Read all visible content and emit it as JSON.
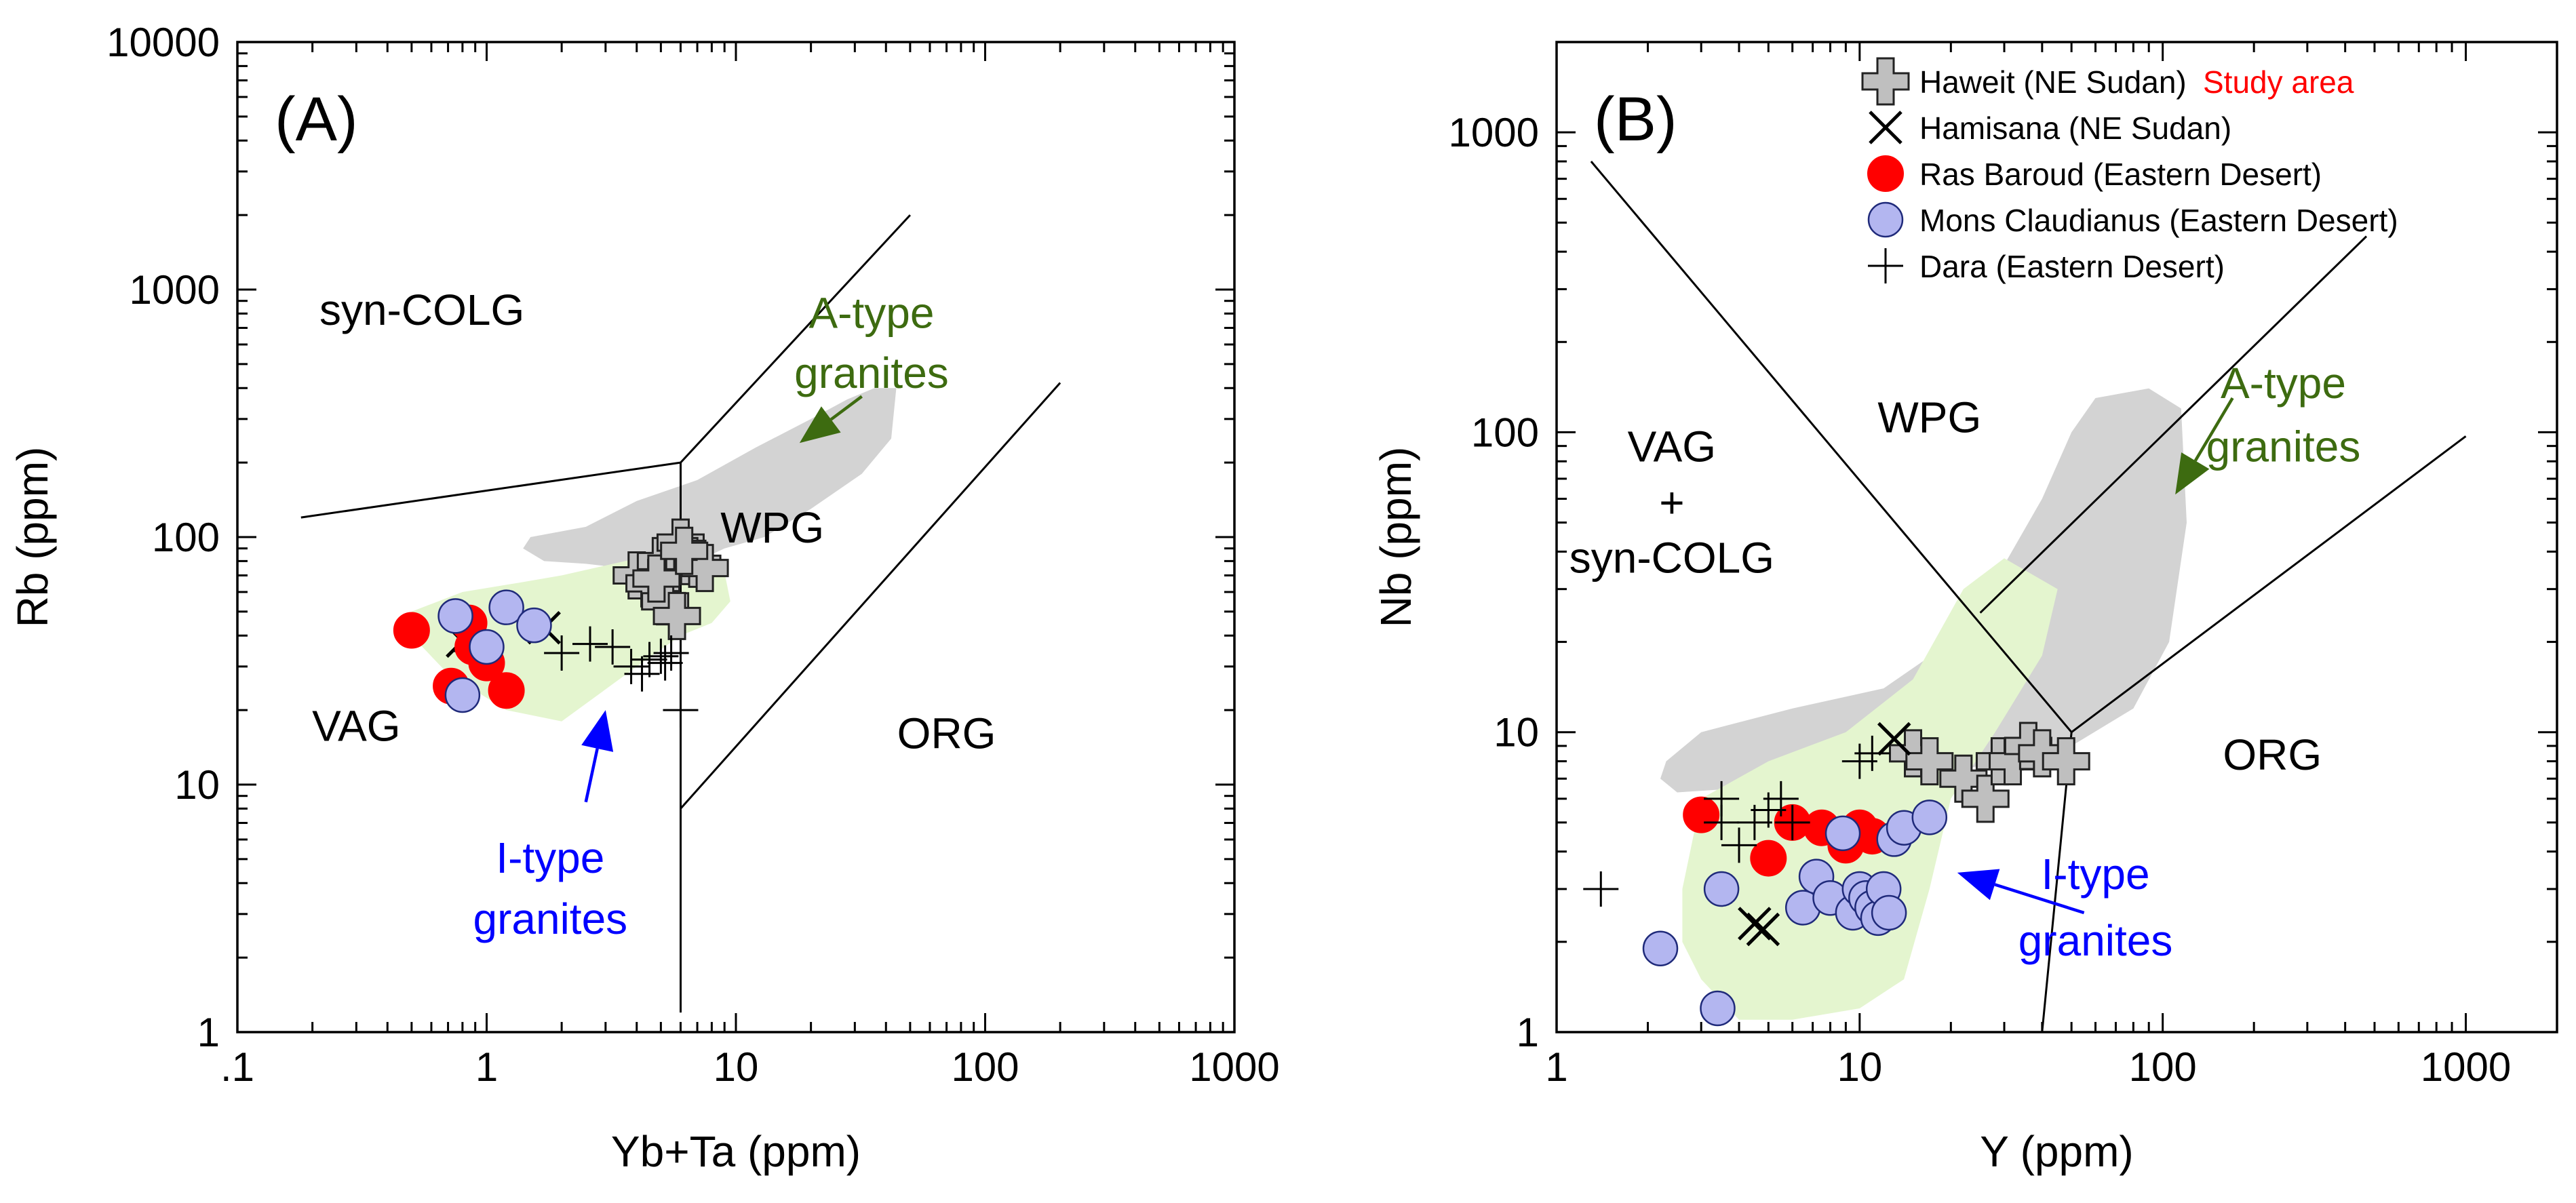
{
  "chart_data": [
    {
      "type": "scatter",
      "panel_label": "(A)",
      "xlabel": "Yb+Ta (ppm)",
      "ylabel": "Rb (ppm)",
      "xscale": "log",
      "yscale": "log",
      "xlim": [
        0.1,
        1000
      ],
      "ylim": [
        1,
        10000
      ],
      "x_ticks": [
        {
          "v": 0.1,
          "label": ".1"
        },
        {
          "v": 1,
          "label": "1"
        },
        {
          "v": 10,
          "label": "10"
        },
        {
          "v": 100,
          "label": "100"
        },
        {
          "v": 1000,
          "label": "1000"
        }
      ],
      "y_ticks": [
        {
          "v": 1,
          "label": "1"
        },
        {
          "v": 10,
          "label": "10"
        },
        {
          "v": 100,
          "label": "100"
        },
        {
          "v": 1000,
          "label": "1000"
        },
        {
          "v": 10000,
          "label": "10000"
        }
      ],
      "field_labels": [
        {
          "text": "syn-COLG",
          "x": 0.55,
          "y": 720,
          "color": "#000000"
        },
        {
          "text": "WPG",
          "x": 14,
          "y": 95,
          "color": "#000000"
        },
        {
          "text": "VAG",
          "x": 0.3,
          "y": 15,
          "color": "#000000"
        },
        {
          "text": "ORG",
          "x": 70,
          "y": 14,
          "color": "#000000"
        },
        {
          "text": "A-type",
          "x": 35,
          "y": 700,
          "color": "#3d6b10"
        },
        {
          "text": "granites",
          "x": 35,
          "y": 400,
          "color": "#3d6b10"
        },
        {
          "text": "I-type",
          "x": 1.8,
          "y": 4.4,
          "color": "#0000ff"
        },
        {
          "text": "granites",
          "x": 1.8,
          "y": 2.5,
          "color": "#0000ff"
        }
      ],
      "boundaries": [
        [
          [
            0.18,
            120
          ],
          [
            6,
            200
          ],
          [
            6,
            1.2
          ]
        ],
        [
          [
            6,
            200
          ],
          [
            50,
            2000
          ]
        ],
        [
          [
            6,
            8
          ],
          [
            200,
            420
          ]
        ]
      ],
      "fields": [
        {
          "name": "A-type granites field",
          "color": "#d3d3d3",
          "points": [
            [
              2.5,
              110
            ],
            [
              4,
              140
            ],
            [
              7,
              170
            ],
            [
              12,
              230
            ],
            [
              20,
              300
            ],
            [
              28,
              360
            ],
            [
              36,
              400
            ],
            [
              44,
              400
            ],
            [
              42,
              250
            ],
            [
              32,
              180
            ],
            [
              20,
              130
            ],
            [
              13,
              100
            ],
            [
              9,
              90
            ],
            [
              7,
              80
            ],
            [
              5,
              75
            ],
            [
              3.5,
              75
            ],
            [
              2.5,
              78
            ],
            [
              1.7,
              80
            ],
            [
              1.4,
              90
            ],
            [
              1.5,
              100
            ]
          ]
        },
        {
          "name": "I-type granites field",
          "color": "#e4f5cf",
          "points": [
            [
              0.5,
              50
            ],
            [
              0.8,
              60
            ],
            [
              1.3,
              65
            ],
            [
              2,
              70
            ],
            [
              4,
              82
            ],
            [
              7,
              85
            ],
            [
              9,
              72
            ],
            [
              9.5,
              55
            ],
            [
              8,
              45
            ],
            [
              6,
              40
            ],
            [
              4,
              30
            ],
            [
              2,
              18
            ],
            [
              1.2,
              20
            ],
            [
              0.7,
              28
            ],
            [
              0.5,
              40
            ]
          ]
        }
      ],
      "arrows": [
        {
          "from": [
            32,
            370
          ],
          "to": [
            18,
            240
          ],
          "color": "#3d6b10"
        },
        {
          "from": [
            2.5,
            8.5
          ],
          "to": [
            3,
            20
          ],
          "color": "#0000ff"
        }
      ],
      "series": [
        {
          "name": "Haweit (NE Sudan)",
          "marker": "gray-cross",
          "points": [
            [
              4,
              70
            ],
            [
              4.5,
              65
            ],
            [
              5,
              80
            ],
            [
              5.5,
              75
            ],
            [
              6,
              95
            ],
            [
              6.5,
              80
            ],
            [
              7,
              78
            ],
            [
              7.5,
              75
            ],
            [
              5.2,
              55
            ],
            [
              5.8,
              48
            ],
            [
              4.8,
              68
            ],
            [
              6.2,
              88
            ]
          ]
        },
        {
          "name": "Hamisana (NE Sudan)",
          "marker": "x",
          "points": [
            [
              0.8,
              38
            ],
            [
              0.85,
              40
            ],
            [
              1.7,
              43
            ]
          ]
        },
        {
          "name": "Ras Baroud (Eastern Desert)",
          "marker": "red-circle",
          "points": [
            [
              0.5,
              42
            ],
            [
              0.72,
              25
            ],
            [
              0.88,
              36
            ],
            [
              1,
              31
            ],
            [
              1.2,
              24
            ],
            [
              0.85,
              45
            ]
          ]
        },
        {
          "name": "Mons Claudianus (Eastern Desert)",
          "marker": "blue-circle",
          "points": [
            [
              0.75,
              48
            ],
            [
              1.2,
              52
            ],
            [
              1.55,
              44
            ],
            [
              1,
              36
            ],
            [
              0.8,
              23
            ]
          ]
        },
        {
          "name": "Dara (Eastern Desert)",
          "marker": "plus",
          "points": [
            [
              2,
              34
            ],
            [
              2.6,
              37
            ],
            [
              3.2,
              36
            ],
            [
              3.8,
              30
            ],
            [
              4.5,
              32
            ],
            [
              5,
              33
            ],
            [
              5.5,
              34
            ],
            [
              6,
              20
            ],
            [
              4.2,
              28
            ],
            [
              5.2,
              31
            ]
          ]
        }
      ]
    },
    {
      "type": "scatter",
      "panel_label": "(B)",
      "xlabel": "Y (ppm)",
      "ylabel": "Nb (ppm)",
      "xscale": "log",
      "yscale": "log",
      "xlim": [
        1,
        2000
      ],
      "ylim": [
        1,
        2000
      ],
      "x_ticks": [
        {
          "v": 1,
          "label": "1"
        },
        {
          "v": 10,
          "label": "10"
        },
        {
          "v": 100,
          "label": "100"
        },
        {
          "v": 1000,
          "label": "1000"
        }
      ],
      "y_ticks": [
        {
          "v": 1,
          "label": "1"
        },
        {
          "v": 10,
          "label": "10"
        },
        {
          "v": 100,
          "label": "100"
        },
        {
          "v": 1000,
          "label": "1000"
        }
      ],
      "field_labels": [
        {
          "text": "VAG",
          "x": 2.4,
          "y": 80,
          "color": "#000000"
        },
        {
          "text": "+",
          "x": 2.4,
          "y": 52,
          "color": "#000000"
        },
        {
          "text": "syn-COLG",
          "x": 2.4,
          "y": 34,
          "color": "#000000"
        },
        {
          "text": "WPG",
          "x": 17,
          "y": 100,
          "color": "#000000"
        },
        {
          "text": "ORG",
          "x": 230,
          "y": 7.5,
          "color": "#000000"
        },
        {
          "text": "A-type",
          "x": 250,
          "y": 130,
          "color": "#3d6b10"
        },
        {
          "text": "granites",
          "x": 250,
          "y": 80,
          "color": "#3d6b10"
        },
        {
          "text": "I-type",
          "x": 60,
          "y": 3,
          "color": "#0000ff"
        },
        {
          "text": "granites",
          "x": 60,
          "y": 1.8,
          "color": "#0000ff"
        }
      ],
      "boundaries": [
        [
          [
            1.3,
            800
          ],
          [
            50,
            10
          ]
        ],
        [
          [
            25,
            25
          ],
          [
            470,
            450
          ]
        ],
        [
          [
            50,
            10
          ],
          [
            1000,
            97
          ]
        ],
        [
          [
            50,
            10
          ],
          [
            40,
            1
          ]
        ]
      ],
      "fields": [
        {
          "name": "A-type granites field",
          "color": "#d3d3d3",
          "points": [
            [
              2.3,
              8
            ],
            [
              3,
              10
            ],
            [
              6,
              12
            ],
            [
              12,
              14
            ],
            [
              20,
              20
            ],
            [
              28,
              32
            ],
            [
              40,
              60
            ],
            [
              50,
              100
            ],
            [
              60,
              130
            ],
            [
              90,
              140
            ],
            [
              115,
              120
            ],
            [
              120,
              50
            ],
            [
              105,
              20
            ],
            [
              80,
              12
            ],
            [
              50,
              9
            ],
            [
              30,
              8
            ],
            [
              15,
              7
            ],
            [
              8,
              6.5
            ],
            [
              4,
              6.5
            ],
            [
              2.5,
              6.3
            ],
            [
              2.2,
              7
            ]
          ]
        },
        {
          "name": "I-type granites field",
          "color": "#e4f5cf",
          "points": [
            [
              2.6,
              3
            ],
            [
              3,
              6
            ],
            [
              5,
              8
            ],
            [
              9,
              10
            ],
            [
              15,
              15
            ],
            [
              22,
              30
            ],
            [
              30,
              38
            ],
            [
              45,
              30
            ],
            [
              40,
              18
            ],
            [
              28,
              10
            ],
            [
              20,
              6
            ],
            [
              17,
              3
            ],
            [
              14,
              1.5
            ],
            [
              10,
              1.2
            ],
            [
              6,
              1.1
            ],
            [
              4,
              1.1
            ],
            [
              3,
              1.5
            ],
            [
              2.6,
              2
            ]
          ]
        }
      ],
      "arrows": [
        {
          "from": [
            170,
            130
          ],
          "to": [
            110,
            62
          ],
          "color": "#3d6b10"
        },
        {
          "from": [
            55,
            2.5
          ],
          "to": [
            21,
            3.4
          ],
          "color": "#0000ff"
        }
      ],
      "series": [
        {
          "name": "Haweit (NE Sudan)",
          "marker": "gray-cross",
          "points": [
            [
              15,
              8.5
            ],
            [
              17,
              8
            ],
            [
              22,
              7
            ],
            [
              26,
              6
            ],
            [
              29,
              8
            ],
            [
              32,
              8
            ],
            [
              36,
              9
            ],
            [
              40,
              8.5
            ],
            [
              48,
              8
            ]
          ]
        },
        {
          "name": "Hamisana (NE Sudan)",
          "marker": "x",
          "points": [
            [
              13,
              9.5
            ],
            [
              4.5,
              2.3
            ],
            [
              4.8,
              2.2
            ]
          ]
        },
        {
          "name": "Ras Baroud (Eastern Desert)",
          "marker": "red-circle",
          "points": [
            [
              3,
              5.3
            ],
            [
              5,
              3.8
            ],
            [
              6,
              5
            ],
            [
              7.5,
              4.8
            ],
            [
              9,
              4.2
            ],
            [
              10,
              4.8
            ],
            [
              11,
              4.5
            ]
          ]
        },
        {
          "name": "Mons Claudianus (Eastern Desert)",
          "marker": "blue-circle",
          "points": [
            [
              2.2,
              1.9
            ],
            [
              3.5,
              3
            ],
            [
              3.4,
              1.2
            ],
            [
              6.5,
              2.6
            ],
            [
              7.2,
              3.3
            ],
            [
              8,
              2.8
            ],
            [
              8.8,
              4.6
            ],
            [
              9.5,
              2.5
            ],
            [
              10,
              3
            ],
            [
              10.5,
              2.8
            ],
            [
              11,
              2.6
            ],
            [
              11.5,
              2.4
            ],
            [
              12,
              3
            ],
            [
              13,
              4.4
            ],
            [
              14,
              4.8
            ],
            [
              17,
              5.2
            ],
            [
              12.5,
              2.5
            ]
          ]
        },
        {
          "name": "Dara (Eastern Desert)",
          "marker": "plus",
          "points": [
            [
              1.4,
              3
            ],
            [
              3.5,
              5
            ],
            [
              3.5,
              6
            ],
            [
              4,
              4.2
            ],
            [
              4.5,
              5
            ],
            [
              5,
              5.5
            ],
            [
              5.5,
              6
            ],
            [
              6,
              5
            ],
            [
              10,
              8
            ],
            [
              11,
              8.5
            ]
          ]
        }
      ],
      "legend": {
        "entries": [
          {
            "label": "Haweit (NE Sudan)",
            "marker": "gray-cross"
          },
          {
            "label": "Hamisana (NE Sudan)",
            "marker": "x"
          },
          {
            "label": "Ras Baroud (Eastern Desert)",
            "marker": "red-circle"
          },
          {
            "label": "Mons Claudianus (Eastern Desert)",
            "marker": "blue-circle"
          },
          {
            "label": "Dara (Eastern Desert)",
            "marker": "plus"
          }
        ],
        "annotation": "Study area",
        "annotation_color": "#ff0000",
        "placement": "top-right"
      }
    }
  ],
  "colors": {
    "a_type_field": "#d3d3d3",
    "i_type_field": "#e4f5cf",
    "ras_baroud": "#ff0000",
    "mons_claudianus": "#b3b6f0",
    "haweit": "#bfbfbf",
    "a_type_label": "#3d6b10",
    "i_type_label": "#0000ff"
  }
}
